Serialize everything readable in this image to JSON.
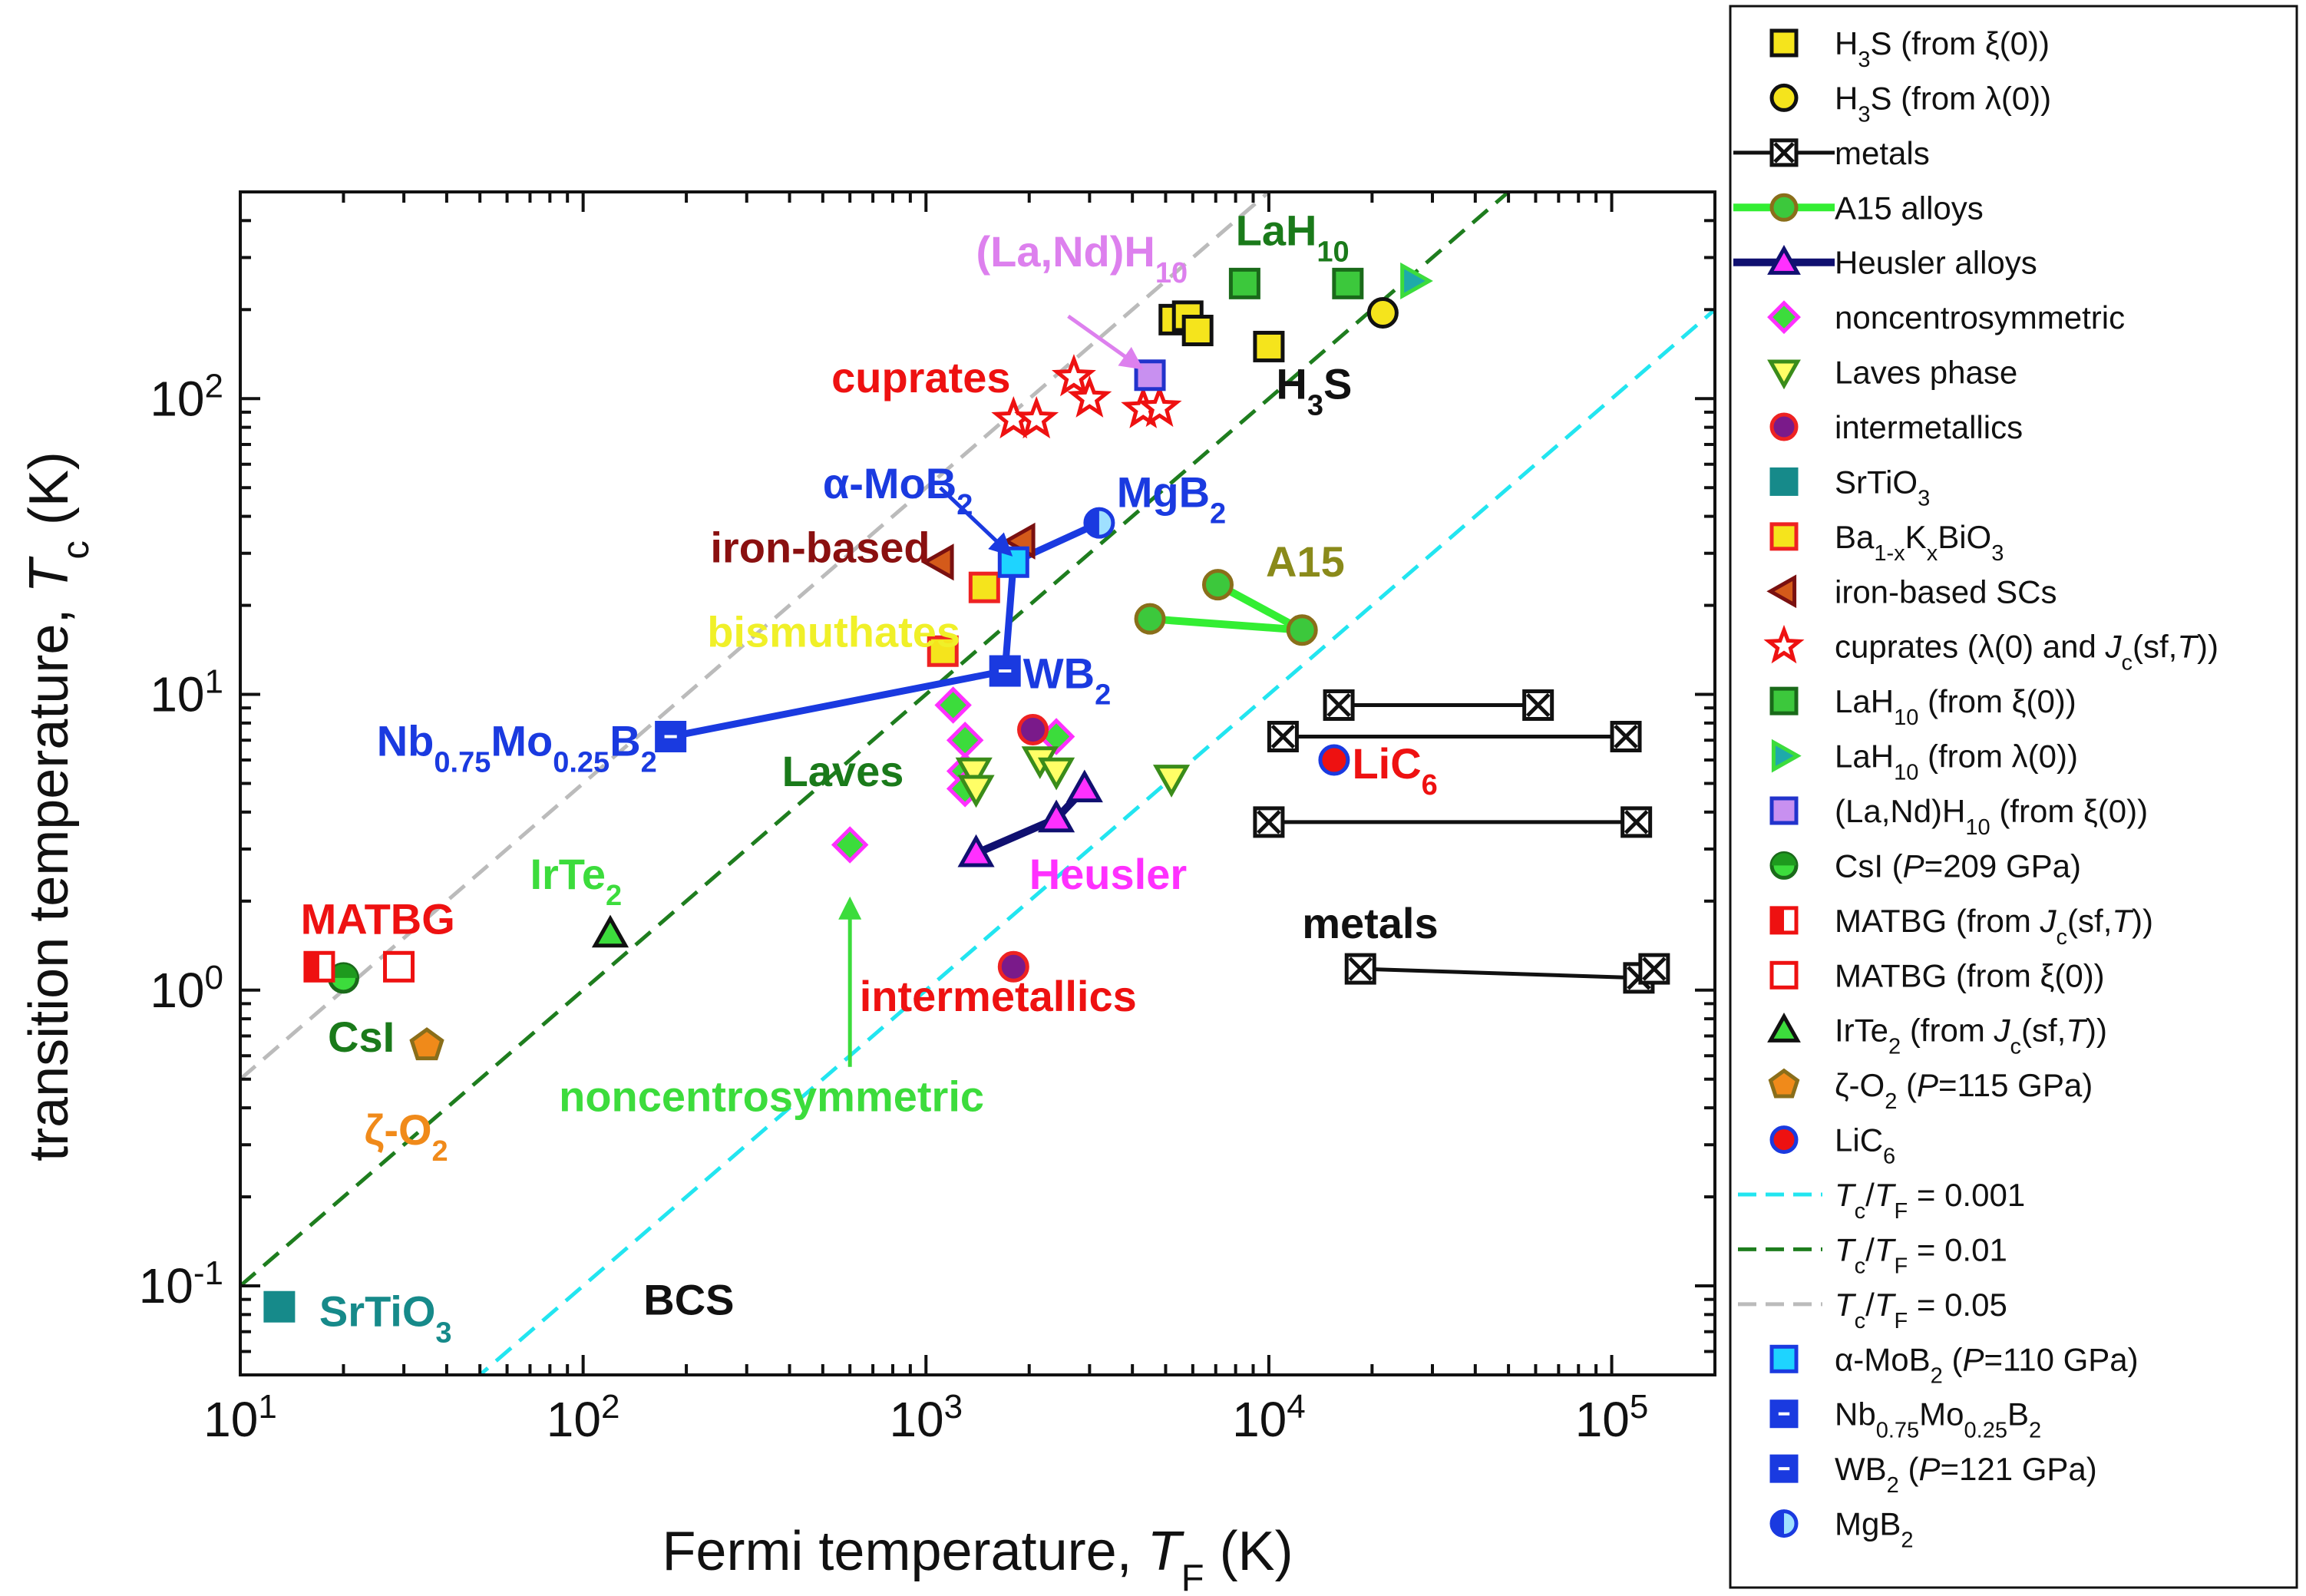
{
  "chart_data": {
    "type": "scatter",
    "title": "",
    "xlabel_parts": [
      "Fermi temperature, ",
      "T",
      "F",
      " (K)"
    ],
    "ylabel_parts": [
      "transition temperature, ",
      "T",
      "c",
      " (K)"
    ],
    "x_scale": "log",
    "y_scale": "log",
    "xlim": [
      10,
      200000
    ],
    "ylim": [
      0.05,
      500
    ],
    "x_ticks": [
      {
        "value": 10,
        "base": "10",
        "exp": "1"
      },
      {
        "value": 100,
        "base": "10",
        "exp": "2"
      },
      {
        "value": 1000,
        "base": "10",
        "exp": "3"
      },
      {
        "value": 10000,
        "base": "10",
        "exp": "4"
      },
      {
        "value": 100000,
        "base": "10",
        "exp": "5"
      }
    ],
    "y_ticks": [
      {
        "value": 0.1,
        "base": "10",
        "exp": "-1"
      },
      {
        "value": 1,
        "base": "10",
        "exp": "0"
      },
      {
        "value": 10,
        "base": "10",
        "exp": "1"
      },
      {
        "value": 100,
        "base": "10",
        "exp": "2"
      }
    ],
    "grid": false,
    "legend_position": "right-outside",
    "reference_lines": [
      {
        "ratio": 0.001,
        "color": "#22e5f0",
        "name_parts": [
          "T",
          "c",
          "/",
          "T",
          "F",
          " = 0.001"
        ]
      },
      {
        "ratio": 0.01,
        "color": "#1e7d1e",
        "name_parts": [
          "T",
          "c",
          "/",
          "T",
          "F",
          " = 0.01"
        ]
      },
      {
        "ratio": 0.05,
        "color": "#bbbbbb",
        "name_parts": [
          "T",
          "c",
          "/",
          "T",
          "F",
          " = 0.05"
        ]
      }
    ],
    "series": [
      {
        "id": "h3s_xi",
        "name_parts": [
          "H",
          "3",
          "S (from ξ(0))"
        ],
        "marker": "square",
        "fill": "#f5e41c",
        "stroke": "#111111",
        "points": [
          [
            5300,
            185
          ],
          [
            5800,
            190
          ],
          [
            6200,
            170
          ],
          [
            10000,
            150
          ]
        ]
      },
      {
        "id": "h3s_lambda",
        "name_parts": [
          "H",
          "3",
          "S (from λ(0))"
        ],
        "marker": "circle",
        "fill": "#f5e41c",
        "stroke": "#111111",
        "points": [
          [
            21500,
            195
          ]
        ]
      },
      {
        "id": "metals",
        "name_parts": [
          "metals"
        ],
        "marker": "boxx",
        "fill": "#ffffff",
        "stroke": "#111111",
        "line": "#111111",
        "segments": [
          [
            [
              16000,
              9.2
            ],
            [
              61000,
              9.2
            ]
          ],
          [
            [
              11000,
              7.2
            ],
            [
              110000,
              7.2
            ]
          ],
          [
            [
              10000,
              3.7
            ],
            [
              118000,
              3.7
            ]
          ],
          [
            [
              18500,
              1.18
            ],
            [
              120000,
              1.1
            ],
            [
              133000,
              1.18
            ]
          ]
        ]
      },
      {
        "id": "a15",
        "name_parts": [
          "A15 alloys"
        ],
        "marker": "circle",
        "fill": "#3cc83c",
        "stroke": "#8a6e1a",
        "line": "#33ee33",
        "segments": [
          [
            [
              4500,
              18
            ],
            [
              12500,
              16.5
            ],
            [
              7100,
              23.5
            ]
          ]
        ]
      },
      {
        "id": "heusler",
        "name_parts": [
          "Heusler alloys"
        ],
        "marker": "triangle",
        "fill": "#ff30ff",
        "stroke": "#101070",
        "line": "#101070",
        "segments": [
          [
            [
              1400,
              2.9
            ],
            [
              2400,
              3.8
            ],
            [
              2900,
              4.8
            ]
          ]
        ]
      },
      {
        "id": "noncentro",
        "name_parts": [
          "noncentrosymmetric"
        ],
        "marker": "diamond",
        "fill": "#3cdc3c",
        "stroke": "#ff30ff",
        "points": [
          [
            600,
            3.1
          ],
          [
            1200,
            9.2
          ],
          [
            1300,
            7.0
          ],
          [
            1300,
            5.5
          ],
          [
            1300,
            4.8
          ],
          [
            2400,
            7.2
          ]
        ]
      },
      {
        "id": "laves",
        "name_parts": [
          "Laves phase"
        ],
        "marker": "invtriangle",
        "fill": "#ffff66",
        "stroke": "#3a8c1a",
        "points": [
          [
            1380,
            5.5
          ],
          [
            1400,
            4.8
          ],
          [
            2150,
            6.0
          ],
          [
            2400,
            5.5
          ],
          [
            5200,
            5.2
          ]
        ]
      },
      {
        "id": "intermet",
        "name_parts": [
          "intermetallics"
        ],
        "marker": "circle",
        "fill": "#7a1a8a",
        "stroke": "#ee2222",
        "points": [
          [
            2050,
            7.6
          ],
          [
            1800,
            1.2
          ]
        ]
      },
      {
        "id": "srtio3",
        "name_parts": [
          "SrTiO",
          "3"
        ],
        "marker": "square",
        "fill": "#168a8a",
        "stroke": "#168a8a",
        "points": [
          [
            13,
            0.085
          ]
        ]
      },
      {
        "id": "bkbo",
        "name_parts": [
          "Ba",
          "1-x",
          "K",
          "x",
          "BiO",
          "3"
        ],
        "marker": "square",
        "fill": "#f5e41c",
        "stroke": "#ee2222",
        "points": [
          [
            1120,
            14
          ],
          [
            1480,
            23
          ]
        ]
      },
      {
        "id": "iron",
        "name_parts": [
          "iron-based SCs"
        ],
        "marker": "lefttriangle",
        "fill": "#d45a1a",
        "stroke": "#7a1010",
        "points": [
          [
            1100,
            28
          ],
          [
            1900,
            33
          ]
        ]
      },
      {
        "id": "cuprates",
        "name_parts": [
          "cuprates (λ(0) and ",
          "J",
          "c",
          "(sf,",
          "T",
          "))"
        ],
        "marker": "star",
        "fill": "#ffffff",
        "stroke": "#ee1111",
        "points": [
          [
            1800,
            85
          ],
          [
            2100,
            85
          ],
          [
            2700,
            118
          ],
          [
            3000,
            100
          ],
          [
            4300,
            92
          ],
          [
            4800,
            93
          ]
        ]
      },
      {
        "id": "lah10_xi",
        "name_parts": [
          "LaH",
          "10",
          " (from ξ(0))"
        ],
        "marker": "square",
        "fill": "#3cc83c",
        "stroke": "#1a6a1a",
        "points": [
          [
            8500,
            245
          ],
          [
            17000,
            245
          ]
        ]
      },
      {
        "id": "lah10_lambda",
        "name_parts": [
          "LaH",
          "10",
          " (from λ(0))"
        ],
        "marker": "righttriangle",
        "fill": "#1eaaaa",
        "stroke": "#3cdc3c",
        "points": [
          [
            26500,
            250
          ]
        ]
      },
      {
        "id": "lanh10",
        "name_parts": [
          "(La,Nd)H",
          "10",
          " (from ξ(0))"
        ],
        "marker": "square",
        "fill": "#c890f0",
        "stroke": "#2233cc",
        "points": [
          [
            4500,
            120
          ]
        ]
      },
      {
        "id": "csi",
        "name_parts": [
          "CsI (",
          "P",
          "=209 GPa)"
        ],
        "marker": "halfcircle",
        "fill": "#1e9a1e",
        "stroke": "#1a6a1a",
        "points": [
          [
            20,
            1.1
          ]
        ]
      },
      {
        "id": "matbg_jc",
        "name_parts": [
          "MATBG (from ",
          "J",
          "c",
          "(sf,",
          "T",
          "))"
        ],
        "marker": "halfsquare",
        "fill": "#ee1111",
        "stroke": "#ee1111",
        "points": [
          [
            17,
            1.2
          ]
        ]
      },
      {
        "id": "matbg_xi",
        "name_parts": [
          "MATBG (from ξ(0))"
        ],
        "marker": "square",
        "fill": "#ffffff",
        "stroke": "#ee1111",
        "points": [
          [
            29,
            1.2
          ]
        ]
      },
      {
        "id": "irte2",
        "name_parts": [
          "IrTe",
          "2",
          " (from ",
          "J",
          "c",
          "(sf,",
          "T",
          "))"
        ],
        "marker": "triangle",
        "fill": "#3cdc3c",
        "stroke": "#111111",
        "points": [
          [
            120,
            1.55
          ]
        ]
      },
      {
        "id": "zo2",
        "name_parts": [
          "ζ-O",
          "2",
          " (",
          "P",
          "=115 GPa)"
        ],
        "marker": "pentagon",
        "fill": "#f08a1a",
        "stroke": "#8a6e1a",
        "points": [
          [
            35,
            0.65
          ]
        ]
      },
      {
        "id": "lic6",
        "name_parts": [
          "LiC",
          "6"
        ],
        "marker": "circle",
        "fill": "#ee1111",
        "stroke": "#1a3ae0",
        "points": [
          [
            15500,
            6.0
          ]
        ]
      },
      {
        "id": "amob2",
        "name_parts": [
          "α-MoB",
          "2",
          " (",
          "P",
          "=110 GPa)"
        ],
        "marker": "square",
        "fill": "#1ed4ff",
        "stroke": "#1a3ae0",
        "points": [
          [
            1800,
            28
          ]
        ]
      },
      {
        "id": "nbmob2",
        "name_parts": [
          "Nb",
          "0.75",
          "Mo",
          "0.25",
          "B",
          "2"
        ],
        "marker": "dashsquare",
        "fill": "#1a3ae0",
        "stroke": "#1a3ae0",
        "points": [
          [
            180,
            7.2
          ]
        ]
      },
      {
        "id": "wb2",
        "name_parts": [
          "WB",
          "2",
          " (",
          "P",
          "=121 GPa)"
        ],
        "marker": "dashsquare",
        "fill": "#1a3ae0",
        "stroke": "#1a3ae0",
        "points": [
          [
            1700,
            12
          ]
        ]
      },
      {
        "id": "mgb2",
        "name_parts": [
          "MgB",
          "2"
        ],
        "marker": "halfcircleL",
        "fill": "#1a3ae0",
        "stroke": "#1a3ae0",
        "points": [
          [
            3200,
            38
          ]
        ]
      }
    ],
    "connector_lines": [
      {
        "color": "#1a3ae0",
        "points": [
          [
            180,
            7.2
          ],
          [
            1700,
            12
          ],
          [
            1800,
            28
          ],
          [
            3200,
            38
          ]
        ]
      }
    ],
    "annotations": [
      {
        "parts": [
          "LaH",
          "10"
        ],
        "x": 8000,
        "y": 330,
        "color": "#1a7a1a"
      },
      {
        "parts": [
          "(La,Nd)H",
          "10"
        ],
        "x": 1400,
        "y": 280,
        "color": "#dd80ee"
      },
      {
        "parts": [
          "cuprates"
        ],
        "x": 530,
        "y": 105,
        "color": "#ee1111"
      },
      {
        "parts": [
          "H",
          "3",
          "S"
        ],
        "x": 10500,
        "y": 100,
        "color": "#111111"
      },
      {
        "parts": [
          "α-MoB",
          "2"
        ],
        "x": 500,
        "y": 46,
        "color": "#1a3ae0"
      },
      {
        "parts": [
          "MgB",
          "2"
        ],
        "x": 3600,
        "y": 43,
        "color": "#1a3ae0"
      },
      {
        "parts": [
          "iron-based"
        ],
        "x": 235,
        "y": 28,
        "color": "#8a1010"
      },
      {
        "parts": [
          "A15"
        ],
        "x": 9800,
        "y": 25,
        "color": "#8a8a1a"
      },
      {
        "parts": [
          "bismuthates"
        ],
        "x": 230,
        "y": 14.5,
        "color": "#f0f028"
      },
      {
        "parts": [
          "WB",
          "2"
        ],
        "x": 1920,
        "y": 10.5,
        "color": "#1a3ae0"
      },
      {
        "parts": [
          "Nb",
          "0.75",
          "Mo",
          "0.25",
          "B",
          "2"
        ],
        "x": 25,
        "y": 6.2,
        "color": "#1a3ae0"
      },
      {
        "parts": [
          "LiC",
          "6"
        ],
        "x": 17500,
        "y": 5.2,
        "color": "#ee1111"
      },
      {
        "parts": [
          "Laves"
        ],
        "x": 380,
        "y": 4.9,
        "color": "#1a7a1a"
      },
      {
        "parts": [
          "IrTe",
          "2"
        ],
        "x": 70,
        "y": 2.2,
        "color": "#3cdc3c"
      },
      {
        "parts": [
          "Heusler"
        ],
        "x": 2000,
        "y": 2.2,
        "color": "#ff30ff"
      },
      {
        "parts": [
          "MATBG"
        ],
        "x": 15,
        "y": 1.55,
        "color": "#ee1111"
      },
      {
        "parts": [
          "metals"
        ],
        "x": 12500,
        "y": 1.5,
        "color": "#111111"
      },
      {
        "parts": [
          "intermetallics"
        ],
        "x": 640,
        "y": 0.85,
        "color": "#ee1111"
      },
      {
        "parts": [
          "CsI"
        ],
        "x": 18,
        "y": 0.62,
        "color": "#1a7a1a"
      },
      {
        "parts": [
          "noncentrosymmetric"
        ],
        "x": 85,
        "y": 0.39,
        "color": "#3cdc3c"
      },
      {
        "parts": [
          "ζ-O",
          "2"
        ],
        "x": 23,
        "y": 0.3,
        "color": "#f08a1a"
      },
      {
        "parts": [
          "BCS"
        ],
        "x": 150,
        "y": 0.08,
        "color": "#111111"
      },
      {
        "parts": [
          "SrTiO",
          "3"
        ],
        "x": 17,
        "y": 0.073,
        "color": "#168a8a"
      }
    ],
    "arrows": [
      {
        "from": [
          2600,
          190
        ],
        "to": [
          4200,
          128
        ],
        "color": "#dd80ee"
      },
      {
        "from": [
          1100,
          50
        ],
        "to": [
          1750,
          30
        ],
        "color": "#1a3ae0"
      },
      {
        "from": [
          600,
          0.55
        ],
        "to": [
          600,
          2.0
        ],
        "color": "#3cdc3c"
      }
    ]
  }
}
